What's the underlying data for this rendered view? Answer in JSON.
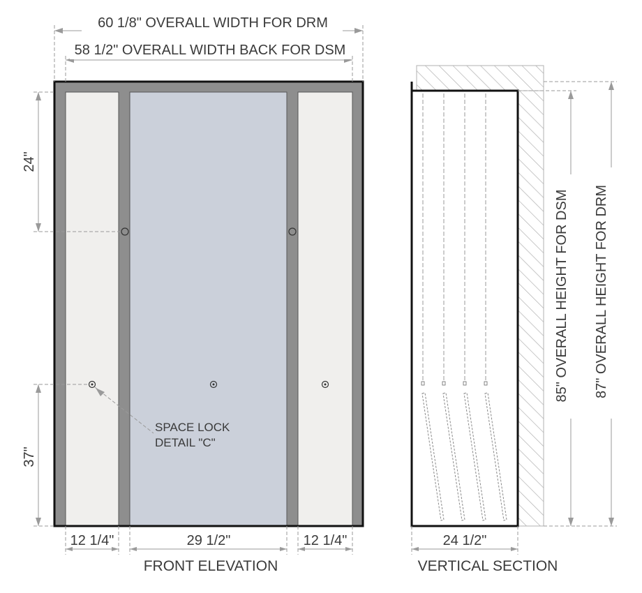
{
  "front_elevation": {
    "title": "FRONT ELEVATION",
    "dim_overall_width_drm": "60 1/8\" OVERALL WIDTH FOR DRM",
    "dim_overall_width_back_dsm": "58 1/2\" OVERALL WIDTH BACK FOR DSM",
    "dim_top_to_lock": "24\"",
    "dim_bottom_to_lock": "37\"",
    "dim_left_panel": "12 1/4\"",
    "dim_center_panel": "29 1/2\"",
    "dim_right_panel": "12 1/4\"",
    "callout_line1": "SPACE LOCK",
    "callout_line2": "DETAIL \"C\""
  },
  "vertical_section": {
    "title": "VERTICAL SECTION",
    "dim_depth": "24 1/2\"",
    "dim_height_dsm": "85\" OVERALL HEIGHT FOR DSM",
    "dim_height_drm": "87\" OVERALL HEIGHT FOR DRM"
  },
  "colors": {
    "frame": "#8e8e8e",
    "outline": "#111111",
    "side_panel": "#f0efed",
    "center_panel": "#cbd0da",
    "hatch": "#b0b0b0",
    "dimension": "#9a9a9a",
    "text": "#3a3a3a"
  }
}
